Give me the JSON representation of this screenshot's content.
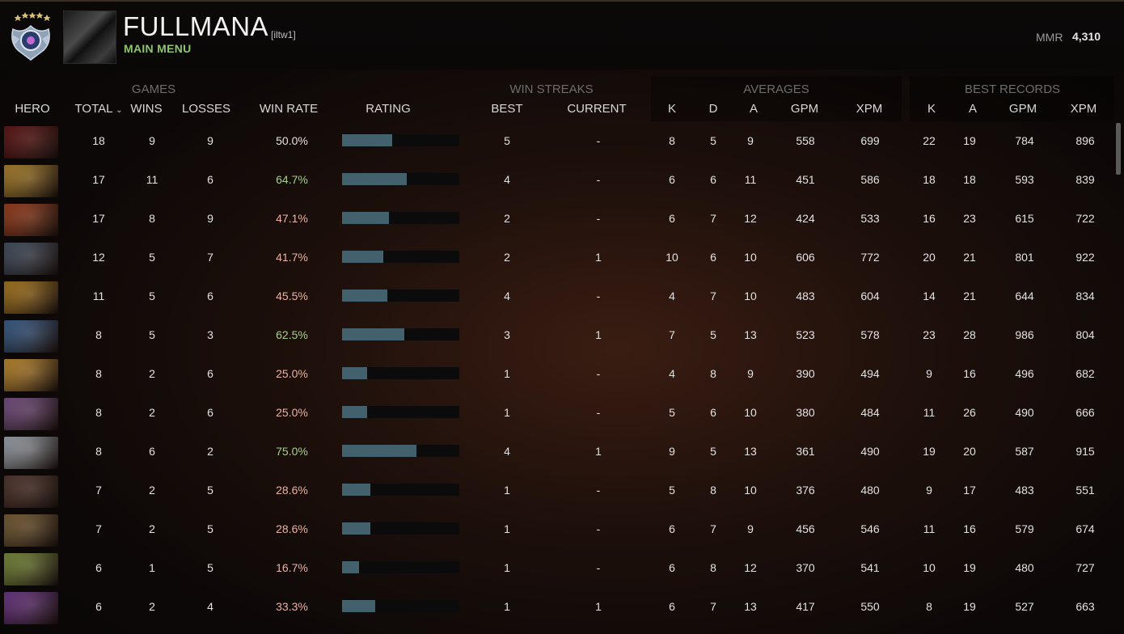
{
  "header": {
    "player_name": "FULLMANA",
    "player_tag": "[iltw1]",
    "main_menu_label": "MAIN MENU",
    "mmr_label": "MMR",
    "mmr_value": "4,310"
  },
  "table": {
    "groups": {
      "games": "GAMES",
      "win_streaks": "WIN STREAKS",
      "averages": "AVERAGES",
      "best_records": "BEST RECORDS"
    },
    "columns": {
      "hero": "HERO",
      "total": "TOTAL",
      "wins": "WINS",
      "losses": "LOSSES",
      "win_rate": "WIN RATE",
      "rating": "RATING",
      "best": "BEST",
      "current": "CURRENT",
      "avg_k": "K",
      "avg_d": "D",
      "avg_a": "A",
      "avg_gpm": "GPM",
      "avg_xpm": "XPM",
      "best_k": "K",
      "best_a": "A",
      "best_gpm": "GPM",
      "best_xpm": "XPM"
    },
    "sort_indicator": "⌄",
    "rows": [
      {
        "total": "18",
        "wins": "9",
        "losses": "9",
        "win_rate": "50.0%",
        "rating": 0.5,
        "best": "5",
        "current": "-",
        "avg_k": "8",
        "avg_d": "5",
        "avg_a": "9",
        "avg_gpm": "558",
        "avg_xpm": "699",
        "best_k": "22",
        "best_a": "19",
        "best_gpm": "784",
        "best_xpm": "896"
      },
      {
        "total": "17",
        "wins": "11",
        "losses": "6",
        "win_rate": "64.7%",
        "rating": 0.647,
        "best": "4",
        "current": "-",
        "avg_k": "6",
        "avg_d": "6",
        "avg_a": "11",
        "avg_gpm": "451",
        "avg_xpm": "586",
        "best_k": "18",
        "best_a": "18",
        "best_gpm": "593",
        "best_xpm": "839"
      },
      {
        "total": "17",
        "wins": "8",
        "losses": "9",
        "win_rate": "47.1%",
        "rating": 0.471,
        "best": "2",
        "current": "-",
        "avg_k": "6",
        "avg_d": "7",
        "avg_a": "12",
        "avg_gpm": "424",
        "avg_xpm": "533",
        "best_k": "16",
        "best_a": "23",
        "best_gpm": "615",
        "best_xpm": "722"
      },
      {
        "total": "12",
        "wins": "5",
        "losses": "7",
        "win_rate": "41.7%",
        "rating": 0.417,
        "best": "2",
        "current": "1",
        "avg_k": "10",
        "avg_d": "6",
        "avg_a": "10",
        "avg_gpm": "606",
        "avg_xpm": "772",
        "best_k": "20",
        "best_a": "21",
        "best_gpm": "801",
        "best_xpm": "922"
      },
      {
        "total": "11",
        "wins": "5",
        "losses": "6",
        "win_rate": "45.5%",
        "rating": 0.455,
        "best": "4",
        "current": "-",
        "avg_k": "4",
        "avg_d": "7",
        "avg_a": "10",
        "avg_gpm": "483",
        "avg_xpm": "604",
        "best_k": "14",
        "best_a": "21",
        "best_gpm": "644",
        "best_xpm": "834"
      },
      {
        "total": "8",
        "wins": "5",
        "losses": "3",
        "win_rate": "62.5%",
        "rating": 0.625,
        "best": "3",
        "current": "1",
        "avg_k": "7",
        "avg_d": "5",
        "avg_a": "13",
        "avg_gpm": "523",
        "avg_xpm": "578",
        "best_k": "23",
        "best_a": "28",
        "best_gpm": "986",
        "best_xpm": "804"
      },
      {
        "total": "8",
        "wins": "2",
        "losses": "6",
        "win_rate": "25.0%",
        "rating": 0.25,
        "best": "1",
        "current": "-",
        "avg_k": "4",
        "avg_d": "8",
        "avg_a": "9",
        "avg_gpm": "390",
        "avg_xpm": "494",
        "best_k": "9",
        "best_a": "16",
        "best_gpm": "496",
        "best_xpm": "682"
      },
      {
        "total": "8",
        "wins": "2",
        "losses": "6",
        "win_rate": "25.0%",
        "rating": 0.25,
        "best": "1",
        "current": "-",
        "avg_k": "5",
        "avg_d": "6",
        "avg_a": "10",
        "avg_gpm": "380",
        "avg_xpm": "484",
        "best_k": "11",
        "best_a": "26",
        "best_gpm": "490",
        "best_xpm": "666"
      },
      {
        "total": "8",
        "wins": "6",
        "losses": "2",
        "win_rate": "75.0%",
        "rating": 0.75,
        "best": "4",
        "current": "1",
        "avg_k": "9",
        "avg_d": "5",
        "avg_a": "13",
        "avg_gpm": "361",
        "avg_xpm": "490",
        "best_k": "19",
        "best_a": "20",
        "best_gpm": "587",
        "best_xpm": "915"
      },
      {
        "total": "7",
        "wins": "2",
        "losses": "5",
        "win_rate": "28.6%",
        "rating": 0.286,
        "best": "1",
        "current": "-",
        "avg_k": "5",
        "avg_d": "8",
        "avg_a": "10",
        "avg_gpm": "376",
        "avg_xpm": "480",
        "best_k": "9",
        "best_a": "17",
        "best_gpm": "483",
        "best_xpm": "551"
      },
      {
        "total": "7",
        "wins": "2",
        "losses": "5",
        "win_rate": "28.6%",
        "rating": 0.286,
        "best": "1",
        "current": "-",
        "avg_k": "6",
        "avg_d": "7",
        "avg_a": "9",
        "avg_gpm": "456",
        "avg_xpm": "546",
        "best_k": "11",
        "best_a": "16",
        "best_gpm": "579",
        "best_xpm": "674"
      },
      {
        "total": "6",
        "wins": "1",
        "losses": "5",
        "win_rate": "16.7%",
        "rating": 0.167,
        "best": "1",
        "current": "-",
        "avg_k": "6",
        "avg_d": "8",
        "avg_a": "12",
        "avg_gpm": "370",
        "avg_xpm": "541",
        "best_k": "10",
        "best_a": "19",
        "best_gpm": "480",
        "best_xpm": "727"
      },
      {
        "total": "6",
        "wins": "2",
        "losses": "4",
        "win_rate": "33.3%",
        "rating": 0.333,
        "best": "1",
        "current": "1",
        "avg_k": "6",
        "avg_d": "7",
        "avg_a": "13",
        "avg_gpm": "417",
        "avg_xpm": "550",
        "best_k": "8",
        "best_a": "19",
        "best_gpm": "527",
        "best_xpm": "663"
      }
    ]
  },
  "colors": {
    "accent_green": "#8fc56a",
    "winrate_good": "#a8d08d",
    "winrate_neutral": "#e2e2e2",
    "winrate_bad": "#e8b3a6",
    "rating_bar": "#43606d",
    "hero_portraits": [
      "#6b1414",
      "#c8962e",
      "#b3441c",
      "#4a5a6e",
      "#c48a1e",
      "#3e6aa0",
      "#e0a030",
      "#8a5a9a",
      "#b8c2cc",
      "#5a3a30",
      "#8a6a3a",
      "#8aa040",
      "#7a3a9a"
    ]
  },
  "icons": {
    "rank": "rank-medal-icon",
    "avatar": "player-avatar",
    "sort": "sort-descending-icon"
  }
}
